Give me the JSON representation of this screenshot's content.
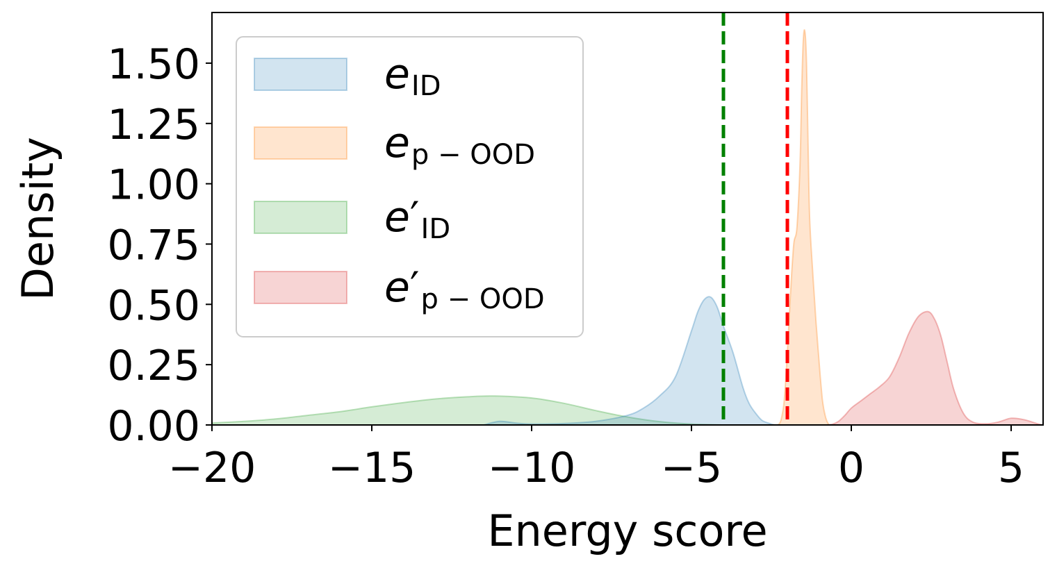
{
  "chart_data": {
    "type": "area",
    "xlabel": "Energy score",
    "ylabel": "Density",
    "xlim": [
      -20,
      6
    ],
    "ylim": [
      0,
      1.71
    ],
    "x_ticks": [
      -20,
      -15,
      -10,
      -5,
      0,
      5
    ],
    "x_tick_labels": [
      "−20",
      "−15",
      "−10",
      "−5",
      "0",
      "5"
    ],
    "y_ticks": [
      0,
      0.25,
      0.5,
      0.75,
      1.0,
      1.25,
      1.5
    ],
    "y_tick_labels": [
      "0.00",
      "0.25",
      "0.50",
      "0.75",
      "1.00",
      "1.25",
      "1.50"
    ],
    "grid": false,
    "legend_position": "top-left",
    "series": [
      {
        "name": "e_ID",
        "legend": {
          "base": "e",
          "prime": "",
          "sub": "ID"
        },
        "fill": "#1f77b4",
        "line": "#1f77b4",
        "x": [
          -11.5,
          -11.0,
          -10.5,
          -10.0,
          -9.0,
          -8.0,
          -7.0,
          -6.5,
          -6.0,
          -5.5,
          -5.0,
          -4.8,
          -4.6,
          -4.4,
          -4.2,
          -4.0,
          -3.7,
          -3.4,
          -3.2,
          -3.0,
          -2.8,
          -2.6,
          -2.4
        ],
        "y": [
          0.0,
          0.015,
          0.008,
          0.004,
          0.006,
          0.015,
          0.04,
          0.07,
          0.12,
          0.2,
          0.39,
          0.47,
          0.52,
          0.53,
          0.49,
          0.41,
          0.3,
          0.16,
          0.09,
          0.05,
          0.02,
          0.008,
          0.0
        ]
      },
      {
        "name": "e_p-OOD",
        "legend": {
          "base": "e",
          "prime": "",
          "sub": "p − OOD"
        },
        "fill": "#ff7f0e",
        "line": "#ff7f0e",
        "x": [
          -2.3,
          -2.2,
          -2.1,
          -2.0,
          -1.9,
          -1.8,
          -1.7,
          -1.6,
          -1.55,
          -1.5,
          -1.45,
          -1.4,
          -1.35,
          -1.3,
          -1.2,
          -1.1,
          -1.0,
          -0.9,
          -0.8,
          -0.7
        ],
        "y": [
          0.0,
          0.02,
          0.1,
          0.3,
          0.55,
          0.75,
          0.82,
          1.1,
          1.4,
          1.6,
          1.63,
          1.5,
          1.15,
          0.85,
          0.62,
          0.42,
          0.25,
          0.1,
          0.03,
          0.0
        ]
      },
      {
        "name": "e'_ID",
        "legend": {
          "base": "e",
          "prime": "′",
          "sub": "ID"
        },
        "fill": "#2ca02c",
        "line": "#2ca02c",
        "x": [
          -20,
          -19,
          -18,
          -17,
          -16,
          -15,
          -14,
          -13,
          -12,
          -11.2,
          -10,
          -9,
          -8,
          -7,
          -6,
          -5,
          -4
        ],
        "y": [
          0.008,
          0.015,
          0.025,
          0.04,
          0.055,
          0.075,
          0.093,
          0.108,
          0.117,
          0.12,
          0.112,
          0.09,
          0.06,
          0.033,
          0.014,
          0.004,
          0.0
        ]
      },
      {
        "name": "e'_p-OOD",
        "legend": {
          "base": "e",
          "prime": "′",
          "sub": "p − OOD"
        },
        "fill": "#d62728",
        "line": "#d62728",
        "x": [
          -0.8,
          -0.6,
          -0.4,
          -0.2,
          0.0,
          0.3,
          0.6,
          0.9,
          1.2,
          1.5,
          1.8,
          2.1,
          2.4,
          2.6,
          2.8,
          3.0,
          3.2,
          3.5,
          3.8,
          4.2,
          4.6,
          5.0,
          5.4,
          5.8,
          6.0
        ],
        "y": [
          0.0,
          0.003,
          0.015,
          0.04,
          0.07,
          0.1,
          0.13,
          0.16,
          0.2,
          0.28,
          0.38,
          0.45,
          0.47,
          0.44,
          0.37,
          0.26,
          0.15,
          0.05,
          0.012,
          0.005,
          0.012,
          0.028,
          0.022,
          0.006,
          0.0
        ]
      }
    ],
    "vlines": [
      {
        "x": -4.0,
        "color": "#008000",
        "style": "dashed"
      },
      {
        "x": -2.0,
        "color": "#ff0000",
        "style": "dashed"
      }
    ]
  }
}
